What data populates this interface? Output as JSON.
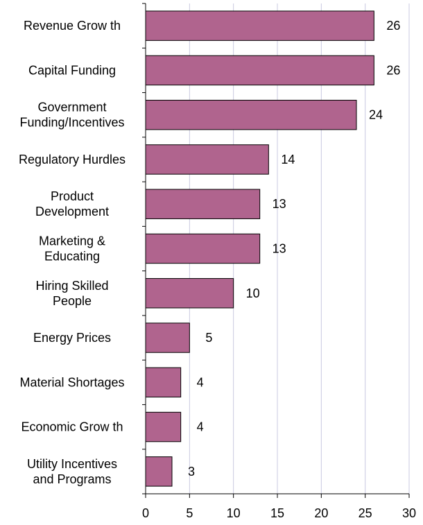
{
  "chart_data": {
    "type": "bar",
    "orientation": "horizontal",
    "categories": [
      "Revenue Grow th",
      "Capital Funding",
      "Government Funding/Incentives",
      "Regulatory Hurdles",
      "Product Development",
      "Marketing & Educating",
      "Hiring Skilled People",
      "Energy Prices",
      "Material Shortages",
      "Economic Grow th",
      "Utility Incentives and Programs"
    ],
    "category_lines": [
      [
        "Revenue Grow th"
      ],
      [
        "Capital Funding"
      ],
      [
        "Government",
        "Funding/Incentives"
      ],
      [
        "Regulatory Hurdles"
      ],
      [
        "Product",
        "Development"
      ],
      [
        "Marketing &",
        "Educating"
      ],
      [
        "Hiring Skilled",
        "People"
      ],
      [
        "Energy Prices"
      ],
      [
        "Material Shortages"
      ],
      [
        "Economic Grow th"
      ],
      [
        "Utility Incentives",
        "and Programs"
      ]
    ],
    "values": [
      26,
      26,
      24,
      14,
      13,
      13,
      10,
      5,
      4,
      4,
      3
    ],
    "xlim": [
      0,
      30
    ],
    "xticks": [
      0,
      5,
      10,
      15,
      20,
      25,
      30
    ],
    "grid": "vertical",
    "data_labels": true,
    "bar_color": "#b0648e",
    "title": "",
    "xlabel": "",
    "ylabel": ""
  }
}
